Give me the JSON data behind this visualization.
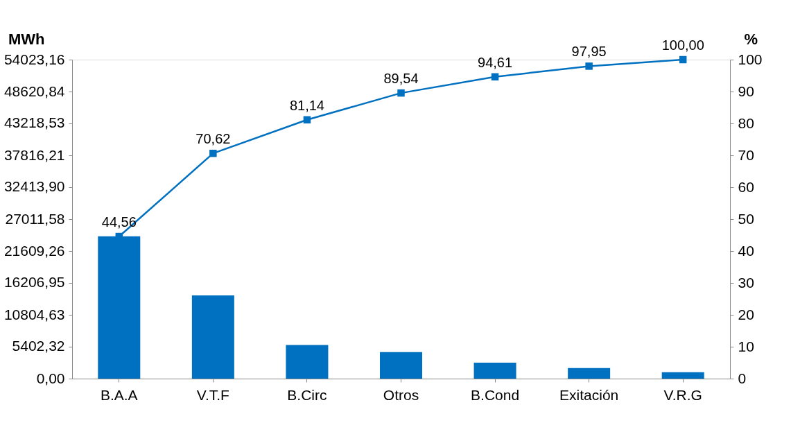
{
  "chart_data": {
    "type": "bar",
    "categories": [
      "B.A.A",
      "V.T.F",
      "B.Circ",
      "Otros",
      "B.Cond",
      "Exitación",
      "V.R.G"
    ],
    "ylabel": "MWh",
    "y2label": "%",
    "ylim": [
      0,
      54023.16
    ],
    "yticks": [
      {
        "value": 0,
        "label": "0,00"
      },
      {
        "value": 5402.32,
        "label": "5402,32"
      },
      {
        "value": 10804.63,
        "label": "10804,63"
      },
      {
        "value": 16206.95,
        "label": "16206,95"
      },
      {
        "value": 21609.26,
        "label": "21609,26"
      },
      {
        "value": 27011.58,
        "label": "27011,58"
      },
      {
        "value": 32413.9,
        "label": "32413,90"
      },
      {
        "value": 37816.21,
        "label": "37816,21"
      },
      {
        "value": 43218.53,
        "label": "43218,53"
      },
      {
        "value": 48620.84,
        "label": "48620,84"
      },
      {
        "value": 54023.16,
        "label": "54023,16"
      }
    ],
    "y2lim": [
      0,
      100
    ],
    "y2ticks": [
      0,
      10,
      20,
      30,
      40,
      50,
      60,
      70,
      80,
      90,
      100
    ],
    "grid": false,
    "marker": "square",
    "series": [
      {
        "color": "#0070c0",
        "values": [
          24100,
          14100,
          5700,
          4500,
          2700,
          1800,
          1100
        ]
      },
      {
        "type": "line",
        "axis": "y2",
        "color": "#0070c0",
        "values": [
          44.56,
          70.62,
          81.14,
          89.54,
          94.61,
          97.95,
          100.0
        ],
        "value_labels": [
          "44,56",
          "70,62",
          "81,14",
          "89,54",
          "94,61",
          "97,95",
          "100,00"
        ]
      }
    ]
  }
}
